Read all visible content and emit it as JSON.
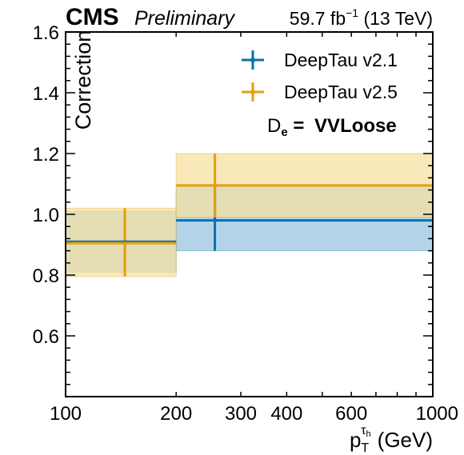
{
  "header": {
    "cms": "CMS",
    "preliminary": "Preliminary",
    "lumi_value": "59.7 fb",
    "lumi_exp": "−1",
    "energy": " (13 TeV)"
  },
  "annotation": {
    "d_symbol": "D",
    "d_sub": "e",
    "eq": " = ",
    "wp": "VVLoose"
  },
  "axes": {
    "ylabel": "Correction",
    "xlabel_p": "p",
    "xlabel_sub": "T",
    "xlabel_sup": "τ",
    "xlabel_supsub": "h",
    "xlabel_unit": "(GeV)"
  },
  "colors": {
    "v21": "#0a72b0",
    "v21_band": "#b3d4e8",
    "v25": "#e5a00a",
    "v25_band": "#f5e0a3",
    "overlap_band": "#c2c19a"
  },
  "chart_data": {
    "type": "line",
    "xscale": "log",
    "xlim": [
      100,
      1000
    ],
    "ylim": [
      0.4,
      1.6
    ],
    "x_ticks": [
      {
        "value": 100,
        "label": "100"
      },
      {
        "value": 200,
        "label": "200"
      },
      {
        "value": 300,
        "label": "300"
      },
      {
        "value": 400,
        "label": "400"
      },
      {
        "value": 600,
        "label": "600"
      },
      {
        "value": 1000,
        "label": "1000"
      }
    ],
    "y_ticks": [
      {
        "value": 0.6,
        "label": "0.6"
      },
      {
        "value": 0.8,
        "label": "0.8"
      },
      {
        "value": 1.0,
        "label": "1.0"
      },
      {
        "value": 1.2,
        "label": "1.2"
      },
      {
        "value": 1.4,
        "label": "1.4"
      },
      {
        "value": 1.6,
        "label": "1.6"
      }
    ],
    "legend_position": "top-right",
    "series": [
      {
        "name": "DeepTau v2.1",
        "color_key": "v21",
        "bins": [
          {
            "x_low": 100,
            "x_high": 200,
            "x_center": 145,
            "value": 0.91,
            "band_low": 0.81,
            "band_high": 1.01,
            "err_low": 0.81,
            "err_high": 1.01
          },
          {
            "x_low": 200,
            "x_high": 1000,
            "x_center": 255,
            "value": 0.98,
            "band_low": 0.88,
            "band_high": 1.09,
            "err_low": 0.88,
            "err_high": 1.09
          }
        ]
      },
      {
        "name": "DeepTau v2.5",
        "color_key": "v25",
        "bins": [
          {
            "x_low": 100,
            "x_high": 200,
            "x_center": 145,
            "value": 0.905,
            "band_low": 0.795,
            "band_high": 1.02,
            "err_low": 0.795,
            "err_high": 1.02
          },
          {
            "x_low": 200,
            "x_high": 1000,
            "x_center": 255,
            "value": 1.095,
            "band_low": 0.99,
            "band_high": 1.2,
            "err_low": 0.99,
            "err_high": 1.2
          }
        ]
      }
    ]
  }
}
